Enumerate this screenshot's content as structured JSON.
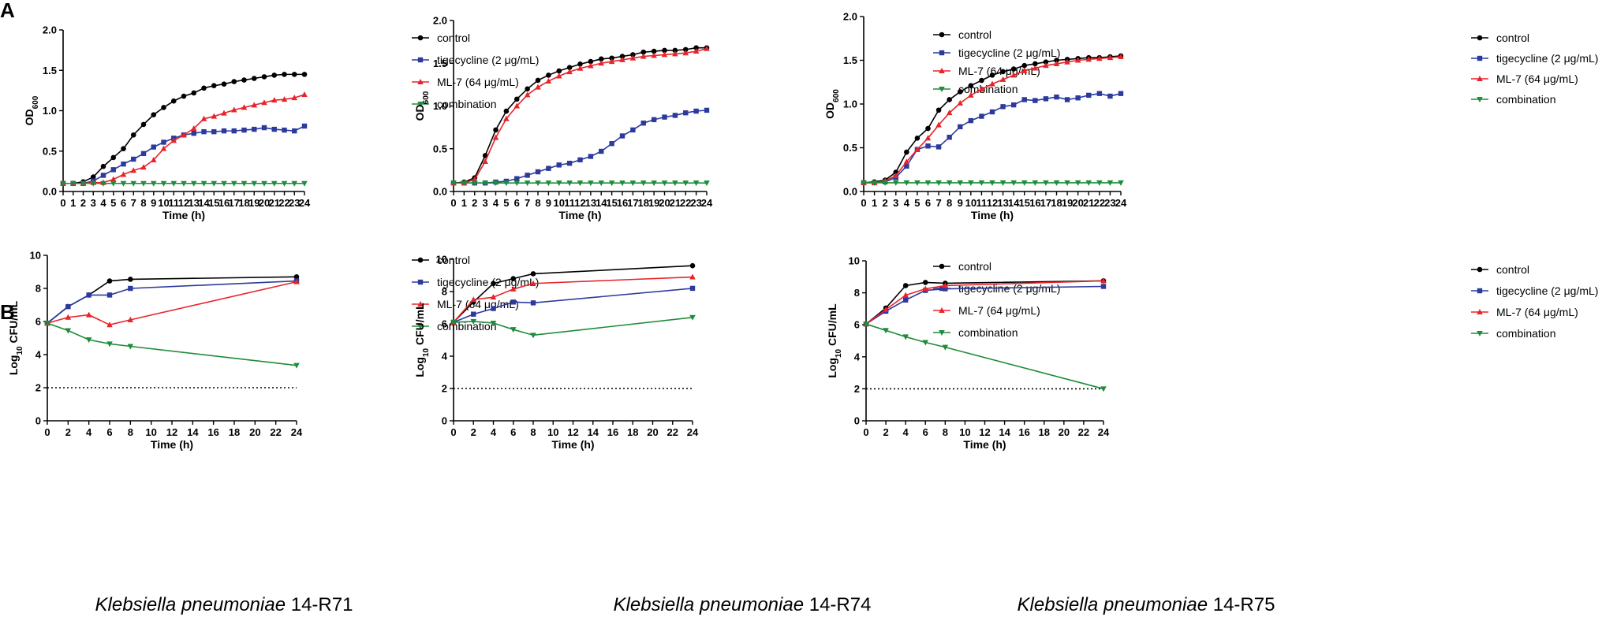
{
  "panel_labels": [
    "A",
    "B"
  ],
  "strain_captions": [
    {
      "species": "Klebsiella pneumoniae",
      "strain": "14-R71"
    },
    {
      "species": "Klebsiella pneumoniae",
      "strain": "14-R74"
    },
    {
      "species": "Klebsiella pneumoniae",
      "strain": "14-R75"
    }
  ],
  "series_styles": [
    {
      "name": "control",
      "color": "#000000",
      "marker": "circle"
    },
    {
      "name": "tigecycline (2 μg/mL)",
      "color": "#2B3A9C",
      "marker": "square"
    },
    {
      "name": "ML-7 (64 μg/mL)",
      "color": "#E8232A",
      "marker": "triangle-up"
    },
    {
      "name": "combination",
      "color": "#1E8C3A",
      "marker": "triangle-down"
    }
  ],
  "chart_data": [
    {
      "type": "line",
      "panel": "A",
      "strain": "14-R71",
      "xlabel": "Time (h)",
      "ylabel": "OD",
      "ylabel_sub": "600",
      "xlim": [
        0,
        24
      ],
      "ylim": [
        0,
        2.0
      ],
      "xticks": [
        0,
        1,
        2,
        3,
        4,
        5,
        6,
        7,
        8,
        9,
        10,
        11,
        12,
        13,
        14,
        15,
        16,
        17,
        18,
        19,
        20,
        21,
        22,
        23,
        24
      ],
      "yticks": [
        0.0,
        0.5,
        1.0,
        1.5,
        2.0
      ],
      "ytick_labels": [
        "0.0",
        "0.5",
        "1.0",
        "1.5",
        "2.0"
      ],
      "x": [
        0,
        1,
        2,
        3,
        4,
        5,
        6,
        7,
        8,
        9,
        10,
        11,
        12,
        13,
        14,
        15,
        16,
        17,
        18,
        19,
        20,
        21,
        22,
        23,
        24
      ],
      "series": [
        {
          "name": "control",
          "values": [
            0.1,
            0.1,
            0.12,
            0.18,
            0.31,
            0.42,
            0.53,
            0.7,
            0.83,
            0.95,
            1.04,
            1.12,
            1.18,
            1.22,
            1.28,
            1.31,
            1.33,
            1.36,
            1.38,
            1.4,
            1.42,
            1.44,
            1.45,
            1.45,
            1.45
          ]
        },
        {
          "name": "tigecycline (2 μg/mL)",
          "values": [
            0.1,
            0.1,
            0.1,
            0.13,
            0.2,
            0.27,
            0.34,
            0.4,
            0.47,
            0.55,
            0.61,
            0.66,
            0.7,
            0.72,
            0.74,
            0.74,
            0.75,
            0.75,
            0.76,
            0.77,
            0.79,
            0.77,
            0.76,
            0.75,
            0.81
          ]
        },
        {
          "name": "ML-7 (64 μg/mL)",
          "values": [
            0.1,
            0.1,
            0.1,
            0.11,
            0.11,
            0.15,
            0.21,
            0.26,
            0.3,
            0.39,
            0.53,
            0.63,
            0.7,
            0.78,
            0.9,
            0.93,
            0.97,
            1.01,
            1.04,
            1.07,
            1.1,
            1.13,
            1.14,
            1.16,
            1.2
          ]
        },
        {
          "name": "combination",
          "values": [
            0.1,
            0.1,
            0.1,
            0.1,
            0.1,
            0.1,
            0.1,
            0.1,
            0.1,
            0.1,
            0.1,
            0.1,
            0.1,
            0.1,
            0.1,
            0.1,
            0.1,
            0.1,
            0.1,
            0.1,
            0.1,
            0.1,
            0.1,
            0.1,
            0.1
          ]
        }
      ]
    },
    {
      "type": "line",
      "panel": "A",
      "strain": "14-R74",
      "xlabel": "Time (h)",
      "ylabel": "OD",
      "ylabel_sub": "600",
      "xlim": [
        0,
        24
      ],
      "ylim": [
        0,
        2.0
      ],
      "xticks": [
        0,
        1,
        2,
        3,
        4,
        5,
        6,
        7,
        8,
        9,
        10,
        11,
        12,
        13,
        14,
        15,
        16,
        17,
        18,
        19,
        20,
        21,
        22,
        23,
        24
      ],
      "yticks": [
        0.0,
        0.5,
        1.0,
        1.5,
        2.0
      ],
      "ytick_labels": [
        "0.0",
        "0.5",
        "1.0",
        "1.5",
        "2.0"
      ],
      "x": [
        0,
        1,
        2,
        3,
        4,
        5,
        6,
        7,
        8,
        9,
        10,
        11,
        12,
        13,
        14,
        15,
        16,
        17,
        18,
        19,
        20,
        21,
        22,
        23,
        24
      ],
      "series": [
        {
          "name": "control",
          "values": [
            0.1,
            0.11,
            0.16,
            0.42,
            0.72,
            0.94,
            1.08,
            1.2,
            1.3,
            1.36,
            1.41,
            1.45,
            1.49,
            1.52,
            1.55,
            1.56,
            1.58,
            1.6,
            1.63,
            1.64,
            1.65,
            1.65,
            1.66,
            1.68,
            1.68
          ]
        },
        {
          "name": "tigecycline (2 μg/mL)",
          "values": [
            0.1,
            0.1,
            0.1,
            0.1,
            0.11,
            0.12,
            0.15,
            0.19,
            0.23,
            0.27,
            0.31,
            0.33,
            0.37,
            0.41,
            0.47,
            0.56,
            0.65,
            0.72,
            0.8,
            0.84,
            0.87,
            0.89,
            0.92,
            0.94,
            0.95
          ]
        },
        {
          "name": "ML-7 (64 μg/mL)",
          "values": [
            0.1,
            0.1,
            0.14,
            0.35,
            0.63,
            0.85,
            1.0,
            1.13,
            1.22,
            1.29,
            1.35,
            1.4,
            1.44,
            1.47,
            1.5,
            1.52,
            1.54,
            1.56,
            1.58,
            1.59,
            1.6,
            1.61,
            1.62,
            1.64,
            1.67
          ]
        },
        {
          "name": "combination",
          "values": [
            0.1,
            0.1,
            0.1,
            0.1,
            0.1,
            0.1,
            0.1,
            0.1,
            0.1,
            0.1,
            0.1,
            0.1,
            0.1,
            0.1,
            0.1,
            0.1,
            0.1,
            0.1,
            0.1,
            0.1,
            0.1,
            0.1,
            0.1,
            0.1,
            0.1
          ]
        }
      ]
    },
    {
      "type": "line",
      "panel": "A",
      "strain": "14-R75",
      "xlabel": "Time (h)",
      "ylabel": "OD",
      "ylabel_sub": "600",
      "xlim": [
        0,
        24
      ],
      "ylim": [
        0,
        2.0
      ],
      "xticks": [
        0,
        1,
        2,
        3,
        4,
        5,
        6,
        7,
        8,
        9,
        10,
        11,
        12,
        13,
        14,
        15,
        16,
        17,
        18,
        19,
        20,
        21,
        22,
        23,
        24
      ],
      "yticks": [
        0.0,
        0.5,
        1.0,
        1.5,
        2.0
      ],
      "ytick_labels": [
        "0.0",
        "0.5",
        "1.0",
        "1.5",
        "2.0"
      ],
      "x": [
        0,
        1,
        2,
        3,
        4,
        5,
        6,
        7,
        8,
        9,
        10,
        11,
        12,
        13,
        14,
        15,
        16,
        17,
        18,
        19,
        20,
        21,
        22,
        23,
        24
      ],
      "series": [
        {
          "name": "control",
          "values": [
            0.1,
            0.11,
            0.13,
            0.22,
            0.45,
            0.61,
            0.72,
            0.93,
            1.05,
            1.14,
            1.21,
            1.27,
            1.33,
            1.37,
            1.4,
            1.44,
            1.46,
            1.48,
            1.5,
            1.51,
            1.52,
            1.53,
            1.53,
            1.54,
            1.55
          ]
        },
        {
          "name": "tigecycline (2 μg/mL)",
          "values": [
            0.1,
            0.1,
            0.11,
            0.16,
            0.29,
            0.48,
            0.52,
            0.51,
            0.62,
            0.74,
            0.81,
            0.86,
            0.91,
            0.97,
            0.99,
            1.05,
            1.04,
            1.06,
            1.08,
            1.05,
            1.07,
            1.1,
            1.12,
            1.09,
            1.12
          ]
        },
        {
          "name": "ML-7 (64 μg/mL)",
          "values": [
            0.1,
            0.1,
            0.12,
            0.18,
            0.34,
            0.48,
            0.61,
            0.76,
            0.9,
            1.01,
            1.1,
            1.17,
            1.23,
            1.28,
            1.33,
            1.38,
            1.41,
            1.44,
            1.46,
            1.48,
            1.5,
            1.51,
            1.52,
            1.53,
            1.54
          ]
        },
        {
          "name": "combination",
          "values": [
            0.1,
            0.1,
            0.1,
            0.1,
            0.1,
            0.1,
            0.1,
            0.1,
            0.1,
            0.1,
            0.1,
            0.1,
            0.1,
            0.1,
            0.1,
            0.1,
            0.1,
            0.1,
            0.1,
            0.1,
            0.1,
            0.1,
            0.1,
            0.1,
            0.1
          ]
        }
      ]
    },
    {
      "type": "line",
      "panel": "B",
      "strain": "14-R71",
      "xlabel": "Time (h)",
      "ylabel": "Log",
      "ylabel_sub": "10",
      "ylabel_suffix": " CFU/mL",
      "xlim": [
        0,
        24
      ],
      "ylim": [
        0,
        10
      ],
      "xticks": [
        0,
        2,
        4,
        6,
        8,
        10,
        12,
        14,
        16,
        18,
        20,
        22,
        24
      ],
      "yticks": [
        0,
        2,
        4,
        6,
        8,
        10
      ],
      "ytick_labels": [
        "0",
        "2",
        "4",
        "6",
        "8",
        "10"
      ],
      "detection_limit": 2,
      "x": [
        0,
        2,
        4,
        6,
        8,
        24
      ],
      "series": [
        {
          "name": "control",
          "values": [
            5.9,
            6.9,
            7.6,
            8.45,
            8.55,
            8.7
          ]
        },
        {
          "name": "tigecycline (2 μg/mL)",
          "values": [
            5.9,
            6.9,
            7.6,
            7.6,
            8.0,
            8.45
          ]
        },
        {
          "name": "ML-7 (64 μg/mL)",
          "values": [
            5.9,
            6.25,
            6.4,
            5.8,
            6.1,
            8.4
          ]
        },
        {
          "name": "combination",
          "values": [
            5.9,
            5.45,
            4.9,
            4.65,
            4.5,
            3.35
          ]
        }
      ]
    },
    {
      "type": "line",
      "panel": "B",
      "strain": "14-R74",
      "xlabel": "Time (h)",
      "ylabel": "Log",
      "ylabel_sub": "10",
      "ylabel_suffix": " CFU/mL",
      "xlim": [
        0,
        24
      ],
      "ylim": [
        0,
        10
      ],
      "xticks": [
        0,
        2,
        4,
        6,
        8,
        10,
        12,
        14,
        16,
        18,
        20,
        22,
        24
      ],
      "yticks": [
        0,
        2,
        4,
        6,
        8,
        10
      ],
      "ytick_labels": [
        "0",
        "2",
        "4",
        "6",
        "8",
        "10"
      ],
      "detection_limit": 2,
      "x": [
        0,
        2,
        4,
        6,
        8,
        24
      ],
      "series": [
        {
          "name": "control",
          "values": [
            6.1,
            7.35,
            8.5,
            8.8,
            9.1,
            9.6
          ]
        },
        {
          "name": "tigecycline (2 μg/mL)",
          "values": [
            6.1,
            6.6,
            6.95,
            7.35,
            7.3,
            8.2
          ]
        },
        {
          "name": "ML-7 (64 μg/mL)",
          "values": [
            6.1,
            7.5,
            7.65,
            8.15,
            8.5,
            8.9
          ]
        },
        {
          "name": "combination",
          "values": [
            6.1,
            6.15,
            6.05,
            5.65,
            5.3,
            6.4
          ]
        }
      ]
    },
    {
      "type": "line",
      "panel": "B",
      "strain": "14-R75",
      "xlabel": "Time (h)",
      "ylabel": "Log",
      "ylabel_sub": "10",
      "ylabel_suffix": " CFU/mL",
      "xlim": [
        0,
        24
      ],
      "ylim": [
        0,
        10
      ],
      "xticks": [
        0,
        2,
        4,
        6,
        8,
        10,
        12,
        14,
        16,
        18,
        20,
        22,
        24
      ],
      "yticks": [
        0,
        2,
        4,
        6,
        8,
        10
      ],
      "ytick_labels": [
        "0",
        "2",
        "4",
        "6",
        "8",
        "10"
      ],
      "detection_limit": 2,
      "x": [
        0,
        2,
        4,
        6,
        8,
        24
      ],
      "series": [
        {
          "name": "control",
          "values": [
            6.05,
            7.05,
            8.45,
            8.65,
            8.6,
            8.75
          ]
        },
        {
          "name": "tigecycline (2 μg/mL)",
          "values": [
            6.05,
            6.85,
            7.55,
            8.15,
            8.25,
            8.4
          ]
        },
        {
          "name": "ML-7 (64 μg/mL)",
          "values": [
            6.05,
            6.95,
            7.85,
            8.25,
            8.45,
            8.75
          ]
        },
        {
          "name": "combination",
          "values": [
            6.05,
            5.65,
            5.25,
            4.9,
            4.6,
            2.0
          ]
        }
      ]
    }
  ]
}
